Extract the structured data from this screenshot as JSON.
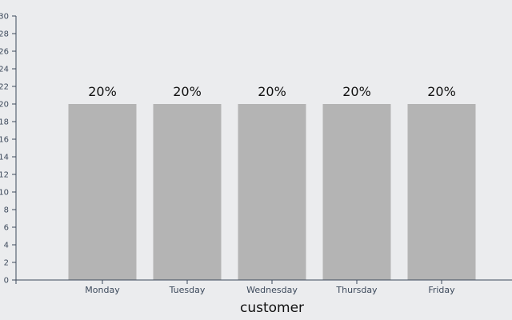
{
  "chart_data": {
    "type": "bar",
    "categories": [
      "Monday",
      "Tuesday",
      "Wednesday",
      "Thursday",
      "Friday"
    ],
    "values": [
      20,
      20,
      20,
      20,
      20
    ],
    "data_labels": [
      "20%",
      "20%",
      "20%",
      "20%",
      "20%"
    ],
    "xlabel": "customer",
    "ylabel": "",
    "ylim": [
      0,
      30
    ],
    "y_ticks": [
      "0",
      "2",
      "4",
      "6",
      "8",
      "10",
      "12",
      "14",
      "16",
      "18",
      "20",
      "22",
      "24",
      "26",
      "28",
      "30"
    ],
    "grid": false,
    "colors": {
      "bar": "#b4b4b4",
      "axis": "#3d4a5c",
      "background": "#ebecee"
    }
  }
}
